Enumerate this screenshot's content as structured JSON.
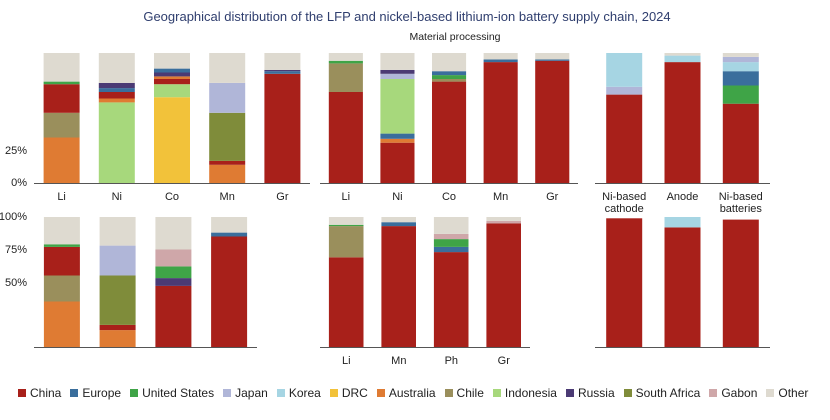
{
  "chart_data": {
    "type": "bar",
    "stacked": true,
    "title": "Geographical distribution of the LFP and nickel-based lithium-ion battery supply chain, 2024",
    "section_label": "Material processing",
    "y_tick_labels_top": [
      "0%",
      "25%",
      "",
      "",
      ""
    ],
    "y_tick_labels_bottom": [
      "",
      "",
      "50%",
      "75%",
      "100%"
    ],
    "ylim": [
      0,
      1
    ],
    "grid": false,
    "legend": [
      {
        "name": "China",
        "color": "#a8201a"
      },
      {
        "name": "Europe",
        "color": "#3a6e9c"
      },
      {
        "name": "United States",
        "color": "#3fa447"
      },
      {
        "name": "Japan",
        "color": "#b0b6d8"
      },
      {
        "name": "Korea",
        "color": "#a6d5e3"
      },
      {
        "name": "DRC",
        "color": "#f2c23a"
      },
      {
        "name": "Australia",
        "color": "#df7b33"
      },
      {
        "name": "Chile",
        "color": "#9a8f5c"
      },
      {
        "name": "Indonesia",
        "color": "#a7d87c"
      },
      {
        "name": "Russia",
        "color": "#4b3a74"
      },
      {
        "name": "South Africa",
        "color": "#7f8c3a"
      },
      {
        "name": "Gabon",
        "color": "#cfa7a9"
      },
      {
        "name": "Other",
        "color": "#dedad0"
      }
    ],
    "panels": [
      {
        "row": 0,
        "col": 0,
        "categories": [
          "Li",
          "Ni",
          "Co",
          "Mn",
          "Gr"
        ],
        "bars": [
          [
            {
              "s": "Australia",
              "v": 0.35
            },
            {
              "s": "Chile",
              "v": 0.19
            },
            {
              "s": "China",
              "v": 0.22
            },
            {
              "s": "United States",
              "v": 0.02
            },
            {
              "s": "Other",
              "v": 0.22
            }
          ],
          [
            {
              "s": "Indonesia",
              "v": 0.62
            },
            {
              "s": "Australia",
              "v": 0.03
            },
            {
              "s": "China",
              "v": 0.05
            },
            {
              "s": "Europe",
              "v": 0.03
            },
            {
              "s": "Russia",
              "v": 0.04
            },
            {
              "s": "Other",
              "v": 0.23
            }
          ],
          [
            {
              "s": "DRC",
              "v": 0.66
            },
            {
              "s": "Indonesia",
              "v": 0.1
            },
            {
              "s": "China",
              "v": 0.04
            },
            {
              "s": "Australia",
              "v": 0.02
            },
            {
              "s": "Russia",
              "v": 0.03
            },
            {
              "s": "Europe",
              "v": 0.03
            },
            {
              "s": "Other",
              "v": 0.12
            }
          ],
          [
            {
              "s": "Australia",
              "v": 0.14
            },
            {
              "s": "China",
              "v": 0.03
            },
            {
              "s": "South Africa",
              "v": 0.37
            },
            {
              "s": "Japan",
              "v": 0.23
            },
            {
              "s": "Other",
              "v": 0.23
            }
          ],
          [
            {
              "s": "China",
              "v": 0.84
            },
            {
              "s": "Europe",
              "v": 0.02
            },
            {
              "s": "Russia",
              "v": 0.01
            },
            {
              "s": "Other",
              "v": 0.13
            }
          ]
        ]
      },
      {
        "row": 0,
        "col": 1,
        "categories": [
          "Li",
          "Ni",
          "Co",
          "Mn",
          "Gr"
        ],
        "bars": [
          [
            {
              "s": "China",
              "v": 0.7
            },
            {
              "s": "Chile",
              "v": 0.22
            },
            {
              "s": "United States",
              "v": 0.02
            },
            {
              "s": "Other",
              "v": 0.06
            }
          ],
          [
            {
              "s": "China",
              "v": 0.31
            },
            {
              "s": "Australia",
              "v": 0.03
            },
            {
              "s": "Europe",
              "v": 0.04
            },
            {
              "s": "Indonesia",
              "v": 0.42
            },
            {
              "s": "Japan",
              "v": 0.04
            },
            {
              "s": "Russia",
              "v": 0.03
            },
            {
              "s": "Other",
              "v": 0.13
            }
          ],
          [
            {
              "s": "China",
              "v": 0.78
            },
            {
              "s": "Chile",
              "v": 0.02
            },
            {
              "s": "United States",
              "v": 0.03
            },
            {
              "s": "Europe",
              "v": 0.03
            },
            {
              "s": "Other",
              "v": 0.14
            }
          ],
          [
            {
              "s": "China",
              "v": 0.93
            },
            {
              "s": "Europe",
              "v": 0.02
            },
            {
              "s": "Other",
              "v": 0.05
            }
          ],
          [
            {
              "s": "China",
              "v": 0.94
            },
            {
              "s": "Europe",
              "v": 0.01
            },
            {
              "s": "Other",
              "v": 0.05
            }
          ]
        ]
      },
      {
        "row": 0,
        "col": 2,
        "categories": [
          "Ni-based cathode",
          "Anode",
          "Ni-based batteries"
        ],
        "bars": [
          [
            {
              "s": "China",
              "v": 0.68
            },
            {
              "s": "Japan",
              "v": 0.06
            },
            {
              "s": "Korea",
              "v": 0.26
            }
          ],
          [
            {
              "s": "China",
              "v": 0.93
            },
            {
              "s": "Korea",
              "v": 0.05
            },
            {
              "s": "Other",
              "v": 0.02
            }
          ],
          [
            {
              "s": "China",
              "v": 0.61
            },
            {
              "s": "United States",
              "v": 0.14
            },
            {
              "s": "Europe",
              "v": 0.11
            },
            {
              "s": "Korea",
              "v": 0.07
            },
            {
              "s": "Japan",
              "v": 0.04
            },
            {
              "s": "Other",
              "v": 0.03
            }
          ]
        ]
      },
      {
        "row": 1,
        "col": 0,
        "categories": [
          "",
          "",
          "",
          ""
        ],
        "bars": [
          [
            {
              "s": "Australia",
              "v": 0.35
            },
            {
              "s": "Chile",
              "v": 0.2
            },
            {
              "s": "China",
              "v": 0.22
            },
            {
              "s": "United States",
              "v": 0.02
            },
            {
              "s": "Other",
              "v": 0.21
            }
          ],
          [
            {
              "s": "Australia",
              "v": 0.13
            },
            {
              "s": "China",
              "v": 0.04
            },
            {
              "s": "South Africa",
              "v": 0.38
            },
            {
              "s": "Japan",
              "v": 0.23
            },
            {
              "s": "Other",
              "v": 0.22
            }
          ],
          [
            {
              "s": "China",
              "v": 0.47
            },
            {
              "s": "Russia",
              "v": 0.06
            },
            {
              "s": "United States",
              "v": 0.09
            },
            {
              "s": "Gabon",
              "v": 0.13
            },
            {
              "s": "Other",
              "v": 0.25
            }
          ],
          [
            {
              "s": "China",
              "v": 0.85
            },
            {
              "s": "Europe",
              "v": 0.03
            },
            {
              "s": "Other",
              "v": 0.12
            }
          ]
        ]
      },
      {
        "row": 1,
        "col": 1,
        "categories": [
          "Li",
          "Mn",
          "Ph",
          "Gr"
        ],
        "bars": [
          [
            {
              "s": "China",
              "v": 0.69
            },
            {
              "s": "Chile",
              "v": 0.24
            },
            {
              "s": "United States",
              "v": 0.01
            },
            {
              "s": "Other",
              "v": 0.06
            }
          ],
          [
            {
              "s": "China",
              "v": 0.93
            },
            {
              "s": "Europe",
              "v": 0.03
            },
            {
              "s": "Other",
              "v": 0.04
            }
          ],
          [
            {
              "s": "China",
              "v": 0.73
            },
            {
              "s": "Europe",
              "v": 0.04
            },
            {
              "s": "United States",
              "v": 0.06
            },
            {
              "s": "Gabon",
              "v": 0.04
            },
            {
              "s": "Other",
              "v": 0.13
            }
          ],
          [
            {
              "s": "China",
              "v": 0.95
            },
            {
              "s": "Gabon",
              "v": 0.02
            },
            {
              "s": "Other",
              "v": 0.03
            }
          ]
        ]
      },
      {
        "row": 1,
        "col": 2,
        "categories": [
          "",
          "",
          ""
        ],
        "bars": [
          [
            {
              "s": "China",
              "v": 0.99
            }
          ],
          [
            {
              "s": "China",
              "v": 0.92
            },
            {
              "s": "Korea",
              "v": 0.08
            }
          ],
          [
            {
              "s": "China",
              "v": 0.98
            }
          ]
        ]
      }
    ]
  }
}
